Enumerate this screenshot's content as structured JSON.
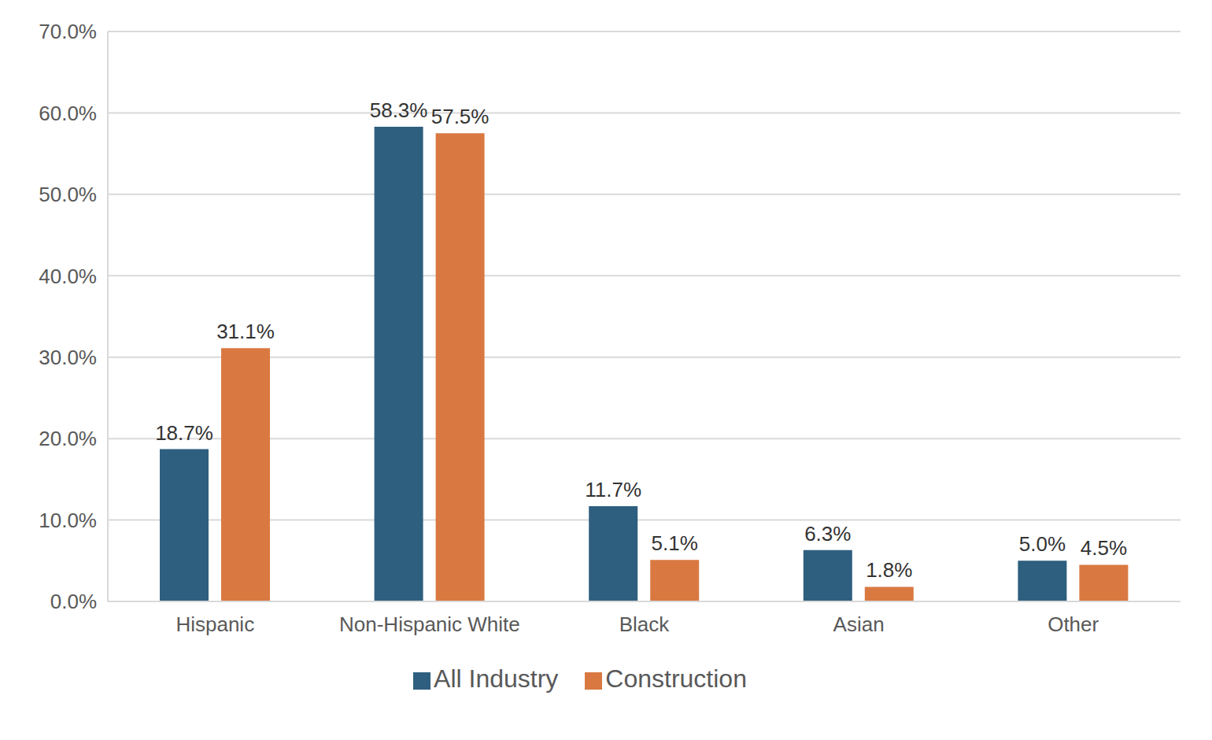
{
  "chart_data": {
    "type": "bar",
    "categories": [
      "Hispanic",
      "Non-Hispanic White",
      "Black",
      "Asian",
      "Other"
    ],
    "series": [
      {
        "name": "All Industry",
        "color": "#2e5f7f",
        "values": [
          18.7,
          58.3,
          11.7,
          6.3,
          5.0
        ],
        "value_labels": [
          "18.7%",
          "58.3%",
          "11.7%",
          "6.3%",
          "5.0%"
        ]
      },
      {
        "name": "Construction",
        "color": "#d97941",
        "values": [
          31.1,
          57.5,
          5.1,
          1.8,
          4.5
        ],
        "value_labels": [
          "31.1%",
          "57.5%",
          "5.1%",
          "1.8%",
          "4.5%"
        ]
      }
    ],
    "ylim": [
      0,
      70
    ],
    "yticks": [
      {
        "value": 0,
        "label": "0.0%"
      },
      {
        "value": 10,
        "label": "10.0%"
      },
      {
        "value": 20,
        "label": "20.0%"
      },
      {
        "value": 30,
        "label": "30.0%"
      },
      {
        "value": 40,
        "label": "40.0%"
      },
      {
        "value": 50,
        "label": "50.0%"
      },
      {
        "value": 60,
        "label": "60.0%"
      },
      {
        "value": 70,
        "label": "70.0%"
      }
    ],
    "grid": true,
    "legend": "bottom",
    "data_labels": true
  }
}
